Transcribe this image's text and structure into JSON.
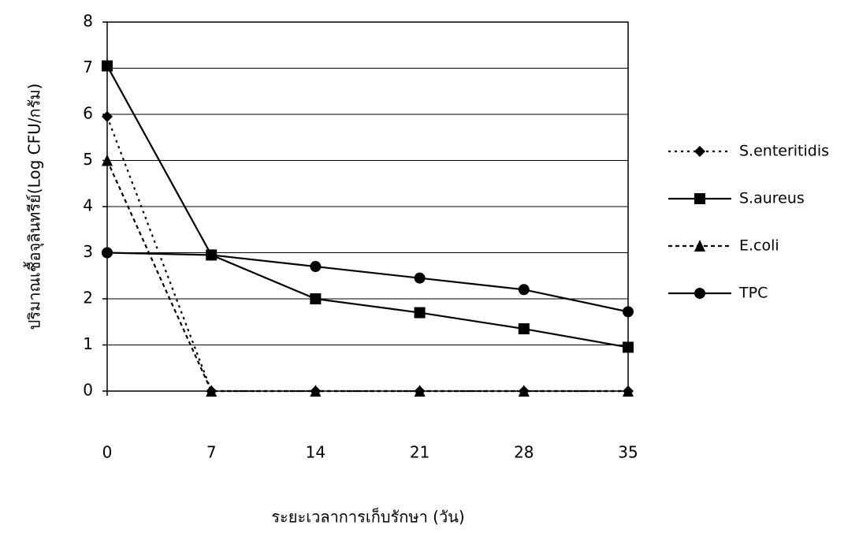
{
  "chart_data": {
    "type": "line",
    "y_label": "ปริมาณเชื้อจุลินทรีย์(Log CFU/กรัม)",
    "x_label": "ระยะเวลาการเก็บรักษา (วัน)",
    "x": [
      0,
      7,
      14,
      21,
      28,
      35
    ],
    "xlim": [
      0,
      35
    ],
    "xticks": [
      0,
      7,
      14,
      21,
      28,
      35
    ],
    "ylim": [
      0,
      8
    ],
    "yticks": [
      0,
      1,
      2,
      3,
      4,
      5,
      6,
      7,
      8
    ],
    "grid": true,
    "legend": "right",
    "series": [
      {
        "name": "S.enteritidis",
        "color": "#000000",
        "dash": "dotted",
        "marker": "diamond",
        "values": [
          5.95,
          0,
          0,
          0,
          0,
          0
        ]
      },
      {
        "name": "S.aureus",
        "color": "#000000",
        "dash": "solid",
        "marker": "square",
        "values": [
          7.05,
          2.95,
          2.0,
          1.7,
          1.35,
          0.95
        ]
      },
      {
        "name": "E.coli",
        "color": "#000000",
        "dash": "dashed",
        "marker": "triangle",
        "values": [
          5.0,
          0,
          0,
          0,
          0,
          0
        ]
      },
      {
        "name": "TPC",
        "color": "#000000",
        "dash": "solid",
        "marker": "circle",
        "values": [
          3.0,
          2.95,
          2.7,
          2.45,
          2.2,
          1.72
        ]
      }
    ]
  }
}
